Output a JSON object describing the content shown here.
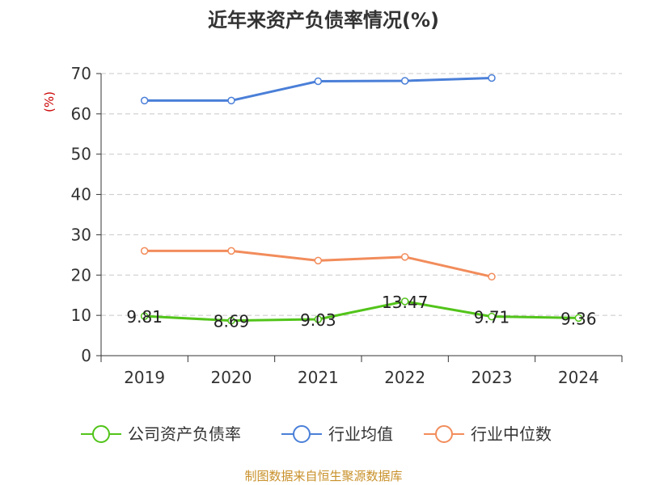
{
  "chart_data": {
    "type": "line",
    "title": "近年来资产负债率情况(%)",
    "ylabel": "(%)",
    "xlabel": "",
    "categories": [
      "2019",
      "2020",
      "2021",
      "2022",
      "2023",
      "2024"
    ],
    "ylim": [
      0,
      70
    ],
    "yticks": [
      0,
      10,
      20,
      30,
      40,
      50,
      60,
      70
    ],
    "grid": true,
    "legend_position": "bottom",
    "series": [
      {
        "name": "公司资产负债率",
        "color": "#52c41a",
        "values": [
          9.81,
          8.69,
          9.03,
          13.47,
          9.71,
          9.36
        ],
        "labels": [
          "9.81",
          "8.69",
          "9.03",
          "13.47",
          "9.71",
          "9.36"
        ]
      },
      {
        "name": "行业均值",
        "color": "#4a7fd8",
        "values": [
          63.3,
          63.3,
          68.1,
          68.2,
          68.9,
          null
        ]
      },
      {
        "name": "行业中位数",
        "color": "#f28c5b",
        "values": [
          26.0,
          26.0,
          23.6,
          24.5,
          19.6,
          null
        ]
      }
    ]
  },
  "footer": {
    "source": "制图数据来自恒生聚源数据库"
  }
}
